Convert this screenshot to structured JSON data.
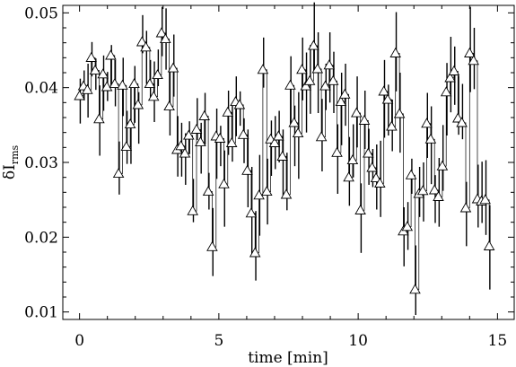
{
  "chart_data": {
    "type": "scatter",
    "title": "",
    "xlabel": "time [min]",
    "ylabel": {
      "main": "δI",
      "sub": "rms"
    },
    "xlim": [
      -0.6,
      15.6
    ],
    "ylim": [
      0.009,
      0.051
    ],
    "xticks": [
      0,
      5,
      10,
      15
    ],
    "yticks": [
      0.01,
      0.02,
      0.03,
      0.04,
      0.05
    ],
    "xtick_labels": [
      "0",
      "5",
      "10",
      "15"
    ],
    "ytick_labels": [
      "0.01",
      "0.02",
      "0.03",
      "0.04",
      "0.05"
    ],
    "grid": false,
    "legend": "none",
    "style": {
      "marker": "open triangle",
      "error_bars": "vertical",
      "connector": "step line",
      "color": "#000000"
    },
    "series": [
      {
        "x": [
          0.0,
          0.14,
          0.28,
          0.42,
          0.56,
          0.7,
          0.84,
          0.98,
          1.12,
          1.26,
          1.4,
          1.54,
          1.68,
          1.82,
          1.96,
          2.1,
          2.24,
          2.38,
          2.52,
          2.66,
          2.8,
          2.94,
          3.08,
          3.22,
          3.36,
          3.5,
          3.64,
          3.78,
          3.92,
          4.06,
          4.2,
          4.34,
          4.48,
          4.62,
          4.76,
          4.9,
          5.04,
          5.18,
          5.32,
          5.46,
          5.6,
          5.74,
          5.88,
          6.02,
          6.16,
          6.3,
          6.44,
          6.58,
          6.72,
          6.86,
          7.0,
          7.14,
          7.28,
          7.42,
          7.56,
          7.7,
          7.84,
          7.98,
          8.12,
          8.26,
          8.4,
          8.54,
          8.68,
          8.82,
          8.96,
          9.1,
          9.24,
          9.38,
          9.52,
          9.66,
          9.8,
          9.94,
          10.08,
          10.22,
          10.36,
          10.5,
          10.64,
          10.78,
          10.92,
          11.06,
          11.2,
          11.34,
          11.48,
          11.62,
          11.76,
          11.9,
          12.04,
          12.18,
          12.32,
          12.46,
          12.6,
          12.74,
          12.88,
          13.02,
          13.16,
          13.3,
          13.44,
          13.58,
          13.72,
          13.86,
          14.0,
          14.14,
          14.28,
          14.42,
          14.56,
          14.7
        ],
        "y": [
          0.0389,
          0.0402,
          0.0397,
          0.044,
          0.0423,
          0.0358,
          0.0418,
          0.0401,
          0.0443,
          0.0405,
          0.0285,
          0.0403,
          0.0321,
          0.0351,
          0.0405,
          0.0377,
          0.0461,
          0.0454,
          0.0405,
          0.0388,
          0.0417,
          0.0473,
          0.0465,
          0.0375,
          0.0426,
          0.0317,
          0.0322,
          0.0312,
          0.0336,
          0.0235,
          0.0344,
          0.0327,
          0.0362,
          0.0261,
          0.0187,
          0.0335,
          0.0332,
          0.0271,
          0.0367,
          0.0326,
          0.0381,
          0.0377,
          0.0337,
          0.0289,
          0.0232,
          0.0179,
          0.0256,
          0.0424,
          0.0261,
          0.0331,
          0.0326,
          0.0335,
          0.0308,
          0.0257,
          0.0403,
          0.0353,
          0.0339,
          0.0424,
          0.0402,
          0.0409,
          0.0456,
          0.0425,
          0.0334,
          0.0402,
          0.043,
          0.0409,
          0.0313,
          0.0381,
          0.0391,
          0.028,
          0.0303,
          0.0366,
          0.0236,
          0.0356,
          0.0312,
          0.0293,
          0.0279,
          0.0272,
          0.0395,
          0.0384,
          0.0348,
          0.0446,
          0.0365,
          0.0208,
          0.0214,
          0.0283,
          0.013,
          0.0258,
          0.0262,
          0.0352,
          0.0331,
          0.0263,
          0.0254,
          0.0295,
          0.0394,
          0.0413,
          0.0422,
          0.0359,
          0.0353,
          0.0239,
          0.0446,
          0.0436,
          0.0251,
          0.0248,
          0.025,
          0.0188
        ],
        "err_hi": [
          0.0023,
          0.0021,
          0.0035,
          0.0021,
          0.0016,
          0.0045,
          0.0025,
          0.002,
          0.0014,
          0.0032,
          0.0043,
          0.0037,
          0.0048,
          0.0051,
          0.0024,
          0.0017,
          0.0036,
          0.0022,
          0.0032,
          0.0047,
          0.0034,
          0.0035,
          0.0041,
          0.0048,
          0.0045,
          0.0045,
          0.0031,
          0.0027,
          0.0019,
          0.0043,
          0.0042,
          0.0026,
          0.0031,
          0.0025,
          0.0052,
          0.0037,
          0.0017,
          0.0045,
          0.0029,
          0.0054,
          0.0034,
          0.0018,
          0.0022,
          0.0055,
          0.0062,
          0.0056,
          0.0054,
          0.0043,
          0.0044,
          0.0025,
          0.0036,
          0.0034,
          0.0036,
          0.0056,
          0.0039,
          0.0023,
          0.0055,
          0.0043,
          0.0045,
          0.0048,
          0.0058,
          0.0049,
          0.0051,
          0.003,
          0.0044,
          0.0039,
          0.0038,
          0.0039,
          0.0041,
          0.0054,
          0.0048,
          0.0049,
          0.0036,
          0.004,
          0.0033,
          0.0025,
          0.0045,
          0.0057,
          0.0042,
          0.002,
          0.0036,
          0.0055,
          0.0055,
          0.0032,
          0.0033,
          0.0022,
          0.0059,
          0.0036,
          0.0038,
          0.0041,
          0.0044,
          0.002,
          0.0052,
          0.0055,
          0.0039,
          0.0055,
          0.0033,
          0.0057,
          0.0052,
          0.0035,
          0.0062,
          0.0044,
          0.0046,
          0.0053,
          0.0053,
          0.0055
        ],
        "err_lo": [
          0.0037,
          0.0019,
          0.0037,
          0.0025,
          0.0026,
          0.0049,
          0.0049,
          0.0019,
          0.0039,
          0.003,
          0.0028,
          0.0041,
          0.0023,
          0.0053,
          0.0052,
          0.0052,
          0.0015,
          0.0049,
          0.0019,
          0.0034,
          0.0015,
          0.0031,
          0.0041,
          0.0039,
          0.0038,
          0.0036,
          0.0041,
          0.0042,
          0.0025,
          0.0015,
          0.0014,
          0.0042,
          0.0038,
          0.0024,
          0.0039,
          0.0057,
          0.0037,
          0.0057,
          0.0057,
          0.0025,
          0.0046,
          0.0028,
          0.0038,
          0.0049,
          0.0058,
          0.0037,
          0.0054,
          0.0024,
          0.0044,
          0.0049,
          0.0035,
          0.0035,
          0.0053,
          0.0021,
          0.0051,
          0.0058,
          0.0061,
          0.0041,
          0.0062,
          0.0044,
          0.0034,
          0.0059,
          0.0046,
          0.0032,
          0.005,
          0.0043,
          0.0055,
          0.0058,
          0.0042,
          0.0038,
          0.0023,
          0.0046,
          0.0057,
          0.0038,
          0.0042,
          0.0026,
          0.0042,
          0.0045,
          0.0062,
          0.0048,
          0.0033,
          0.0051,
          0.0052,
          0.0047,
          0.0031,
          0.0025,
          0.0034,
          0.0031,
          0.0041,
          0.0046,
          0.006,
          0.0044,
          0.004,
          0.0033,
          0.0058,
          0.0046,
          0.0045,
          0.0022,
          0.0022,
          0.0051,
          0.0052,
          0.0038,
          0.0038,
          0.0029,
          0.0047,
          0.0058
        ]
      }
    ]
  }
}
